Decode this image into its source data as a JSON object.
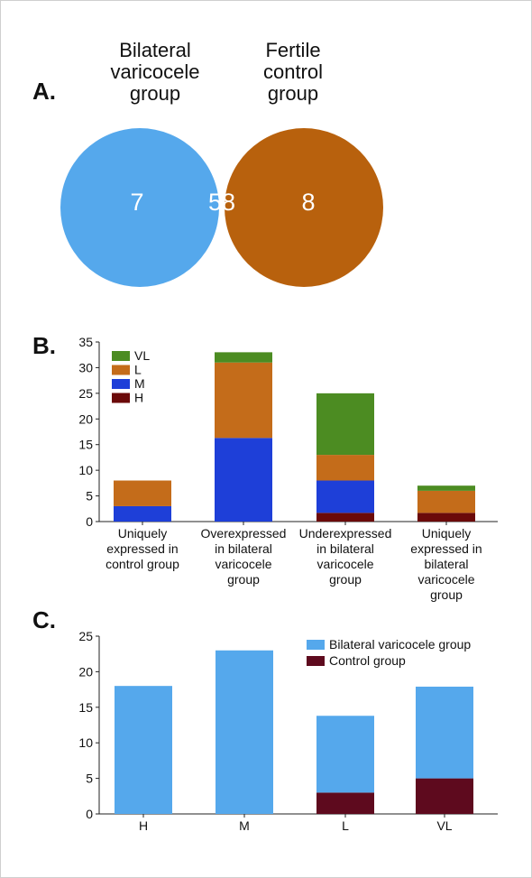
{
  "panels": {
    "a": "A.",
    "b": "B.",
    "c": "C."
  },
  "chart_data": [
    {
      "type": "venn",
      "sets": [
        {
          "name_lines": [
            "Bilateral",
            "varicocele",
            "group"
          ],
          "only": 7,
          "color": "#55a8ec"
        },
        {
          "name_lines": [
            "Fertile",
            "control",
            "group"
          ],
          "only": 8,
          "color": "#b8610d"
        }
      ],
      "intersection": 58,
      "intersection_color": "#9a7d75"
    },
    {
      "type": "bar",
      "stacked": true,
      "categories": [
        [
          "Uniquely",
          "expressed in",
          "control group"
        ],
        [
          "Overexpressed",
          "in bilateral",
          "varicocele",
          "group"
        ],
        [
          "Underexpressed",
          "in bilateral",
          "varicocele",
          "group"
        ],
        [
          "Uniquely",
          "expressed in",
          "bilateral",
          "varicocele",
          "group"
        ]
      ],
      "series": [
        {
          "name": "H",
          "color": "#6b0a0a",
          "values": [
            0,
            0,
            1.7,
            1.7
          ]
        },
        {
          "name": "M",
          "color": "#1e3fd8",
          "values": [
            3,
            16.3,
            6.3,
            0
          ]
        },
        {
          "name": "L",
          "color": "#c46c1a",
          "values": [
            5,
            14.7,
            5,
            4.3
          ]
        },
        {
          "name": "VL",
          "color": "#4c8c22",
          "values": [
            0,
            2,
            12,
            1
          ]
        }
      ],
      "legend_order": [
        "VL",
        "L",
        "M",
        "H"
      ],
      "legend_position": "top-left",
      "ylim": [
        0,
        35
      ],
      "yticks": [
        0,
        5,
        10,
        15,
        20,
        25,
        30,
        35
      ],
      "grid": false
    },
    {
      "type": "bar",
      "stacked": true,
      "categories": [
        "H",
        "M",
        "L",
        "VL"
      ],
      "series": [
        {
          "name": "Control group",
          "color": "#5e0a1e",
          "values": [
            0,
            0,
            3,
            5
          ]
        },
        {
          "name": "Bilateral varicocele group",
          "color": "#55a8ec",
          "values": [
            18,
            23,
            10.8,
            12.9
          ]
        }
      ],
      "legend_order": [
        "Bilateral varicocele group",
        "Control group"
      ],
      "legend_position": "top-right",
      "ylim": [
        0,
        25
      ],
      "yticks": [
        0,
        5,
        10,
        15,
        20,
        25
      ],
      "grid": false
    }
  ]
}
